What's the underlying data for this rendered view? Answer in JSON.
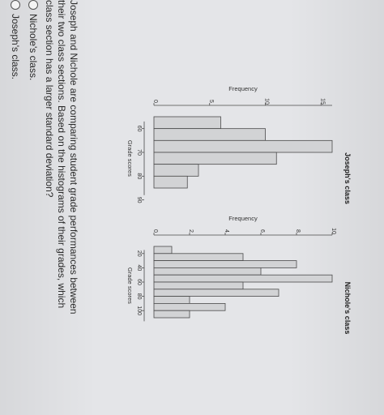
{
  "question": {
    "text": "Joseph and Nichole are comparing student grade performances between their two class sections. Based on the histograms of their grades, which class section has a larger standard deviation?",
    "options": [
      {
        "label": "Nichole's class."
      },
      {
        "label": "Joseph's class."
      }
    ]
  },
  "chart_data": [
    {
      "type": "bar",
      "title": "Joseph's class",
      "xlabel": "Grade scores",
      "ylabel": "Frequency",
      "x_ticks": [
        "60",
        "70",
        "80",
        "90"
      ],
      "y_ticks": [
        "0",
        "5",
        "10",
        "15"
      ],
      "bins": [
        [
          55,
          60
        ],
        [
          60,
          65
        ],
        [
          65,
          70
        ],
        [
          70,
          75
        ],
        [
          75,
          80
        ],
        [
          80,
          85
        ]
      ],
      "values": [
        6,
        10,
        16,
        11,
        4,
        3
      ],
      "ylim": [
        0,
        16
      ]
    },
    {
      "type": "bar",
      "title": "Nichole's class",
      "xlabel": "Grade scores",
      "ylabel": "Frequency",
      "x_ticks": [
        "20",
        "40",
        "60",
        "80",
        "100"
      ],
      "y_ticks": [
        "0",
        "2",
        "4",
        "6",
        "8",
        "10"
      ],
      "bins": [
        [
          10,
          20
        ],
        [
          20,
          30
        ],
        [
          30,
          40
        ],
        [
          40,
          50
        ],
        [
          50,
          60
        ],
        [
          60,
          70
        ],
        [
          70,
          80
        ],
        [
          80,
          90
        ],
        [
          90,
          100
        ],
        [
          100,
          110
        ]
      ],
      "values": [
        1,
        5,
        8,
        6,
        10,
        5,
        7,
        2,
        4,
        2
      ],
      "ylim": [
        0,
        10
      ]
    }
  ]
}
